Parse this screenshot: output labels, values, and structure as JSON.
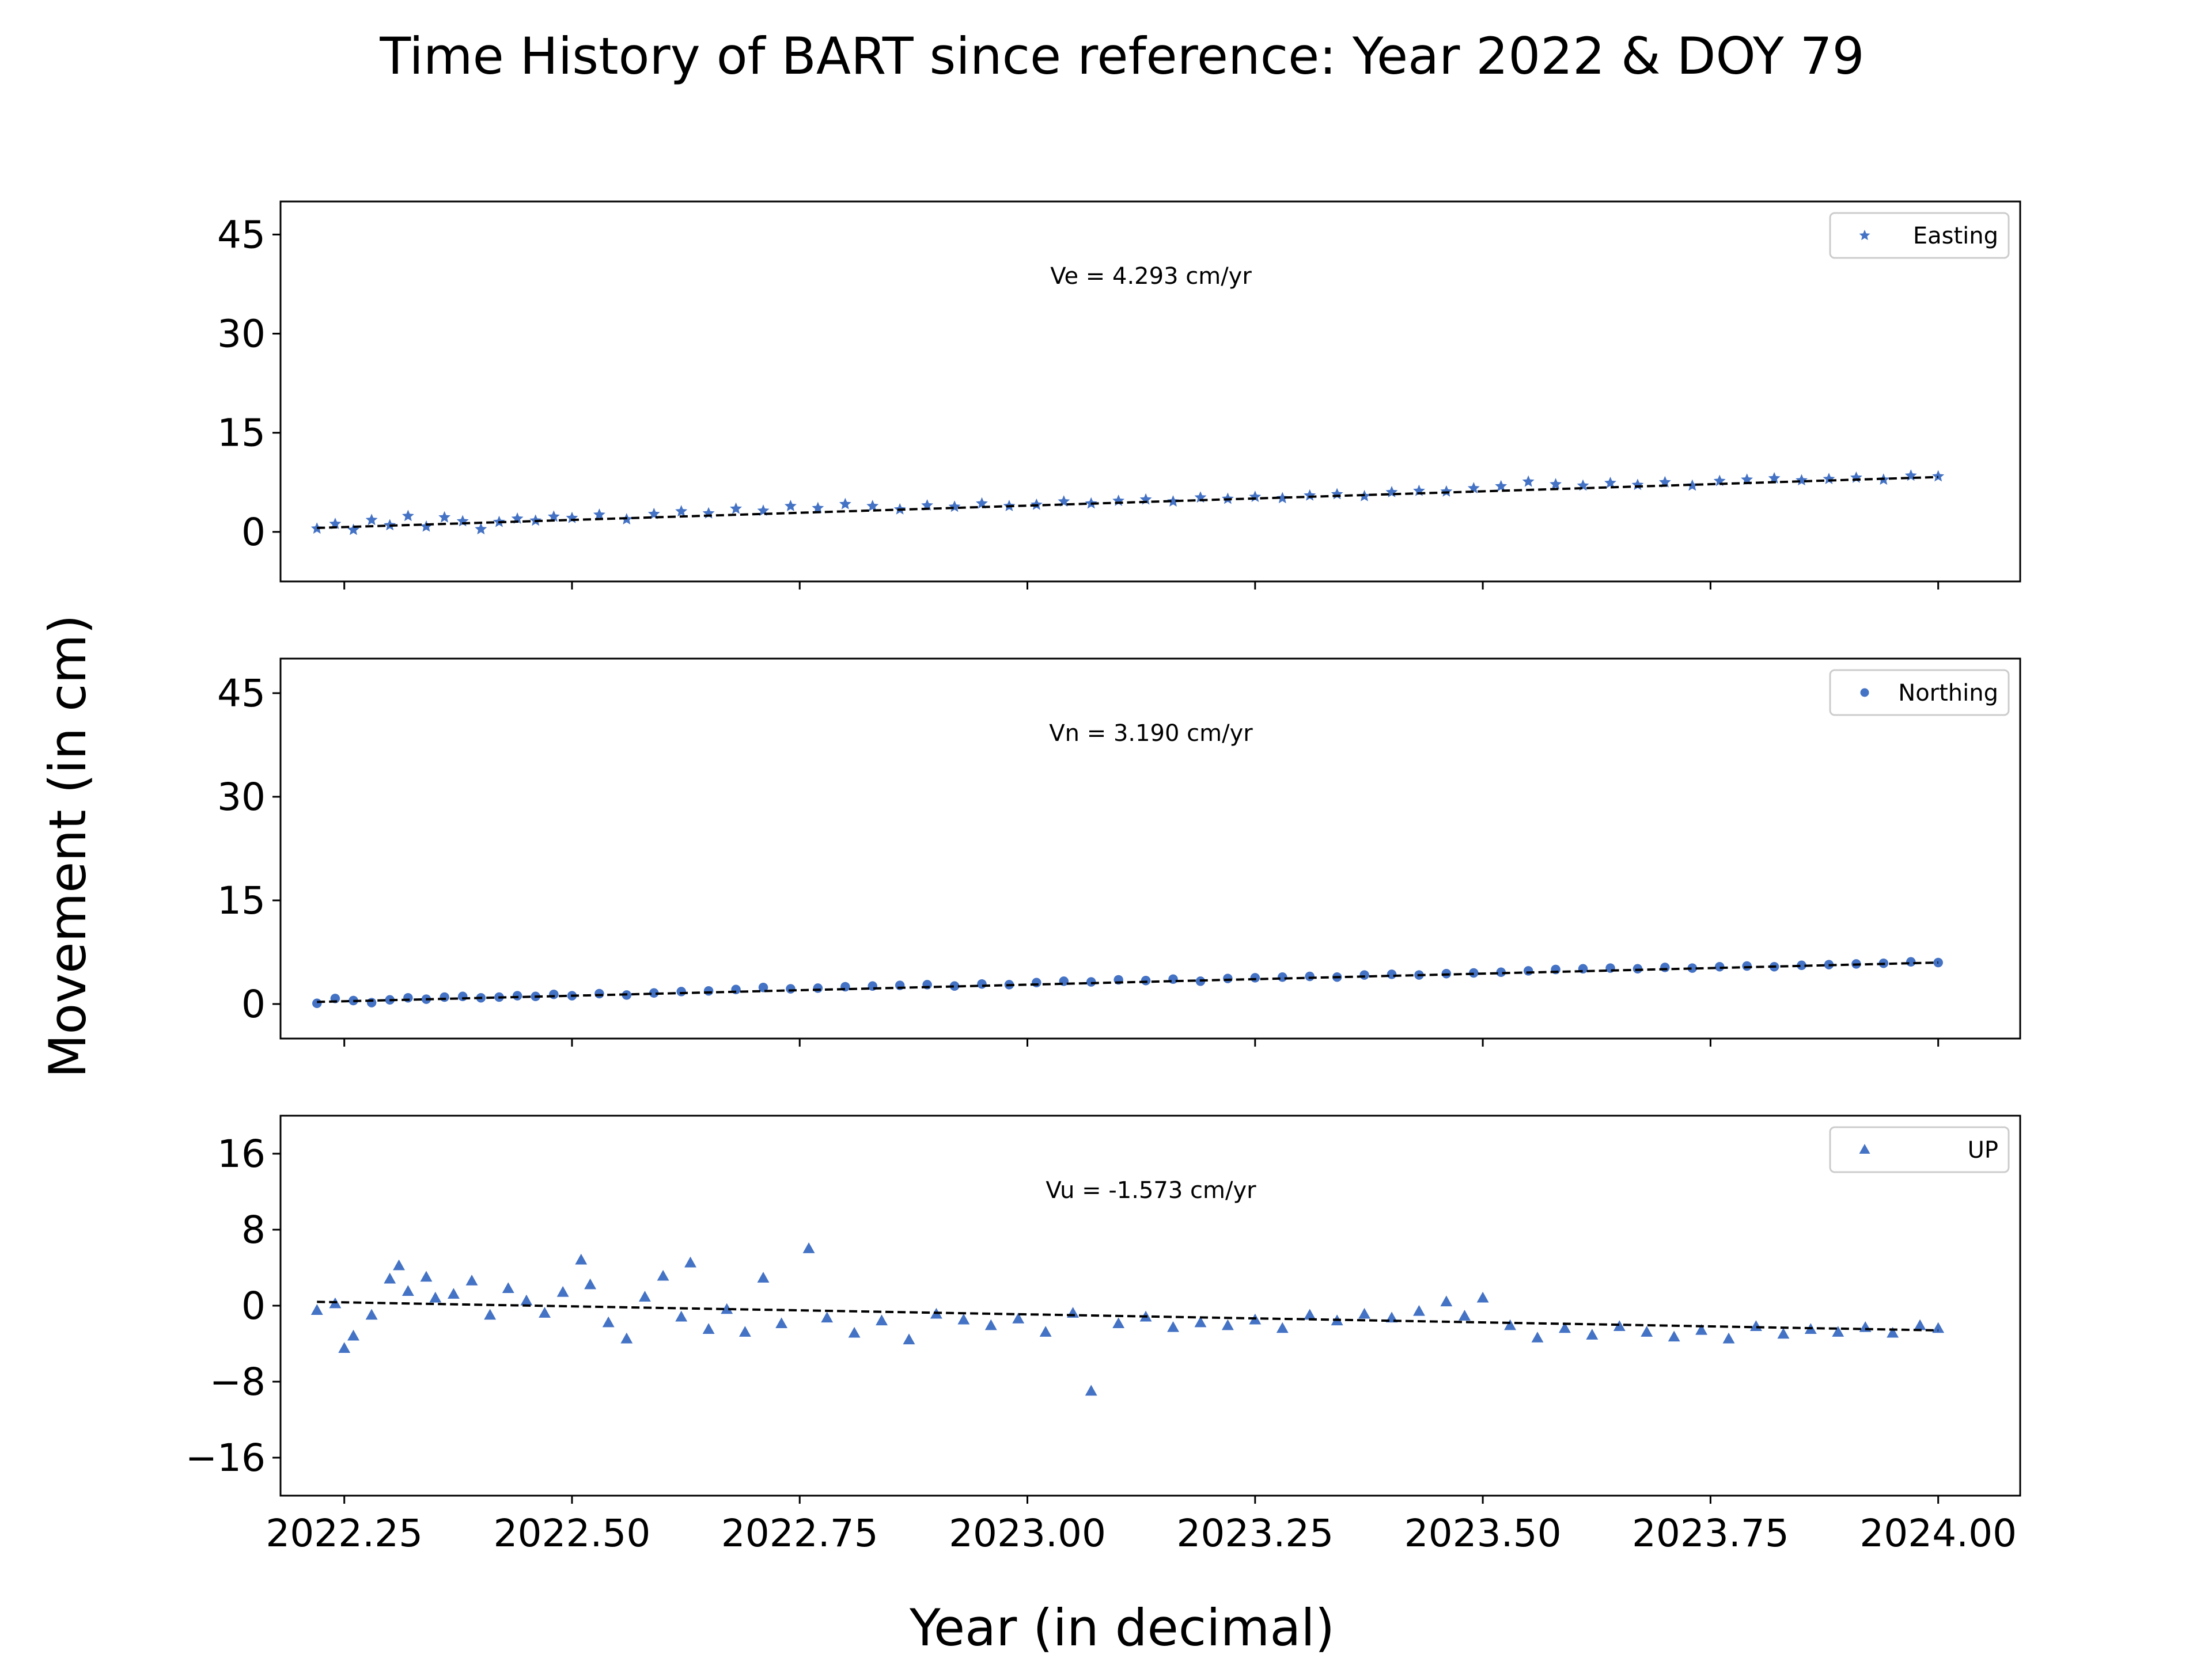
{
  "figure": {
    "title": "Time History of BART since reference: Year 2022 & DOY 79",
    "xlabel": "Year (in decimal)",
    "ylabel": "Movement (in cm)"
  },
  "colors": {
    "points": "#4472c4",
    "trend": "#000000",
    "axes": "#000000",
    "background": "#ffffff"
  },
  "chart_data": [
    {
      "type": "scatter",
      "component": "east",
      "legend": "Easting",
      "marker": "star",
      "annotation": "Ve =  4.293 cm/yr",
      "xlim": [
        2022.18,
        2024.09
      ],
      "ylim": [
        -7.5,
        50
      ],
      "yticks": [
        0,
        15,
        30,
        45
      ],
      "ytick_labels": [
        "0",
        "15",
        "30",
        "45"
      ],
      "xtick_labels_visible": false,
      "grid": false,
      "legend_position": "top-right",
      "trend": {
        "x": [
          2022.22,
          2024.0
        ],
        "y": [
          0.6,
          8.3
        ]
      },
      "points": {
        "x": [
          2022.22,
          2022.24,
          2022.26,
          2022.28,
          2022.3,
          2022.32,
          2022.34,
          2022.36,
          2022.38,
          2022.4,
          2022.42,
          2022.44,
          2022.46,
          2022.48,
          2022.5,
          2022.53,
          2022.56,
          2022.59,
          2022.62,
          2022.65,
          2022.68,
          2022.71,
          2022.74,
          2022.77,
          2022.8,
          2022.83,
          2022.86,
          2022.89,
          2022.92,
          2022.95,
          2022.98,
          2023.01,
          2023.04,
          2023.07,
          2023.1,
          2023.13,
          2023.16,
          2023.19,
          2023.22,
          2023.25,
          2023.28,
          2023.31,
          2023.34,
          2023.37,
          2023.4,
          2023.43,
          2023.46,
          2023.49,
          2023.52,
          2023.55,
          2023.58,
          2023.61,
          2023.64,
          2023.67,
          2023.7,
          2023.73,
          2023.76,
          2023.79,
          2023.82,
          2023.85,
          2023.88,
          2023.91,
          2023.94,
          2023.97,
          2024.0
        ],
        "y": [
          0.5,
          1.2,
          0.3,
          1.8,
          1.0,
          2.4,
          0.8,
          2.2,
          1.6,
          0.4,
          1.5,
          2.0,
          1.7,
          2.3,
          2.1,
          2.6,
          1.9,
          2.7,
          3.1,
          2.8,
          3.5,
          3.2,
          3.9,
          3.6,
          4.2,
          3.9,
          3.4,
          4.0,
          3.8,
          4.3,
          3.9,
          4.1,
          4.6,
          4.3,
          4.7,
          4.9,
          4.6,
          5.2,
          5.0,
          5.3,
          5.1,
          5.5,
          5.7,
          5.4,
          6.0,
          6.2,
          6.1,
          6.6,
          6.9,
          7.6,
          7.2,
          7.0,
          7.4,
          7.1,
          7.5,
          7.0,
          7.7,
          7.9,
          8.1,
          7.8,
          8.0,
          8.2,
          7.9,
          8.5,
          8.4
        ]
      }
    },
    {
      "type": "scatter",
      "component": "north",
      "legend": "Northing",
      "marker": "circle",
      "annotation": "Vn =  3.190 cm/yr",
      "xlim": [
        2022.18,
        2024.09
      ],
      "ylim": [
        -5,
        50
      ],
      "yticks": [
        0,
        15,
        30,
        45
      ],
      "ytick_labels": [
        "0",
        "15",
        "30",
        "45"
      ],
      "xtick_labels_visible": false,
      "grid": false,
      "legend_position": "top-right",
      "trend": {
        "x": [
          2022.22,
          2024.0
        ],
        "y": [
          0.3,
          6.0
        ]
      },
      "points": {
        "x": [
          2022.22,
          2022.24,
          2022.26,
          2022.28,
          2022.3,
          2022.32,
          2022.34,
          2022.36,
          2022.38,
          2022.4,
          2022.42,
          2022.44,
          2022.46,
          2022.48,
          2022.5,
          2022.53,
          2022.56,
          2022.59,
          2022.62,
          2022.65,
          2022.68,
          2022.71,
          2022.74,
          2022.77,
          2022.8,
          2022.83,
          2022.86,
          2022.89,
          2022.92,
          2022.95,
          2022.98,
          2023.01,
          2023.04,
          2023.07,
          2023.1,
          2023.13,
          2023.16,
          2023.19,
          2023.22,
          2023.25,
          2023.28,
          2023.31,
          2023.34,
          2023.37,
          2023.4,
          2023.43,
          2023.46,
          2023.49,
          2023.52,
          2023.55,
          2023.58,
          2023.61,
          2023.64,
          2023.67,
          2023.7,
          2023.73,
          2023.76,
          2023.79,
          2023.82,
          2023.85,
          2023.88,
          2023.91,
          2023.94,
          2023.97,
          2024.0
        ],
        "y": [
          0.1,
          0.8,
          0.5,
          0.2,
          0.6,
          0.9,
          0.7,
          1.0,
          1.1,
          0.9,
          1.0,
          1.2,
          1.1,
          1.4,
          1.2,
          1.5,
          1.3,
          1.6,
          1.8,
          1.9,
          2.1,
          2.4,
          2.2,
          2.3,
          2.5,
          2.6,
          2.7,
          2.8,
          2.6,
          2.9,
          2.8,
          3.1,
          3.3,
          3.2,
          3.5,
          3.4,
          3.6,
          3.3,
          3.7,
          3.8,
          3.9,
          4.0,
          3.9,
          4.2,
          4.3,
          4.2,
          4.4,
          4.5,
          4.6,
          4.8,
          5.0,
          5.1,
          5.2,
          5.1,
          5.3,
          5.2,
          5.4,
          5.5,
          5.4,
          5.6,
          5.7,
          5.8,
          5.9,
          6.1,
          6.0
        ]
      }
    },
    {
      "type": "scatter",
      "component": "up",
      "legend": "UP",
      "marker": "triangle",
      "annotation": "Vu = -1.573 cm/yr",
      "xlim": [
        2022.18,
        2024.09
      ],
      "ylim": [
        -20,
        20
      ],
      "yticks": [
        -16,
        -8,
        0,
        8,
        16
      ],
      "ytick_labels": [
        "−16",
        "−8",
        "0",
        "8",
        "16"
      ],
      "xticks": [
        2022.25,
        2022.5,
        2022.75,
        2023.0,
        2023.25,
        2023.5,
        2023.75,
        2024.0
      ],
      "xtick_labels": [
        "2022.25",
        "2022.50",
        "2022.75",
        "2023.00",
        "2023.25",
        "2023.50",
        "2023.75",
        "2024.00"
      ],
      "grid": false,
      "legend_position": "top-right",
      "trend": {
        "x": [
          2022.22,
          2024.0
        ],
        "y": [
          0.4,
          -2.6
        ]
      },
      "points": {
        "x": [
          2022.22,
          2022.24,
          2022.25,
          2022.26,
          2022.28,
          2022.3,
          2022.31,
          2022.32,
          2022.34,
          2022.35,
          2022.37,
          2022.39,
          2022.41,
          2022.43,
          2022.45,
          2022.47,
          2022.49,
          2022.51,
          2022.52,
          2022.54,
          2022.56,
          2022.58,
          2022.6,
          2022.62,
          2022.63,
          2022.65,
          2022.67,
          2022.69,
          2022.71,
          2022.73,
          2022.76,
          2022.78,
          2022.81,
          2022.84,
          2022.87,
          2022.9,
          2022.93,
          2022.96,
          2022.99,
          2023.02,
          2023.05,
          2023.07,
          2023.1,
          2023.13,
          2023.16,
          2023.19,
          2023.22,
          2023.25,
          2023.28,
          2023.31,
          2023.34,
          2023.37,
          2023.4,
          2023.43,
          2023.46,
          2023.48,
          2023.5,
          2023.53,
          2023.56,
          2023.59,
          2023.62,
          2023.65,
          2023.68,
          2023.71,
          2023.74,
          2023.77,
          2023.8,
          2023.83,
          2023.86,
          2023.89,
          2023.92,
          2023.95,
          2023.98,
          2024.0
        ],
        "y": [
          -0.5,
          0.2,
          -4.5,
          -3.2,
          -1.0,
          2.8,
          4.2,
          1.5,
          3.0,
          0.8,
          1.2,
          2.6,
          -1.0,
          1.8,
          0.5,
          -0.8,
          1.4,
          4.8,
          2.2,
          -1.8,
          -3.5,
          0.9,
          3.1,
          -1.2,
          4.5,
          -2.5,
          -0.4,
          -2.8,
          2.9,
          -1.9,
          6.0,
          -1.3,
          -2.9,
          -1.6,
          -3.6,
          -0.9,
          -1.5,
          -2.1,
          -1.4,
          -2.8,
          -0.8,
          -9.0,
          -1.9,
          -1.2,
          -2.3,
          -1.8,
          -2.1,
          -1.5,
          -2.4,
          -1.0,
          -1.6,
          -0.9,
          -1.3,
          -0.6,
          0.4,
          -1.1,
          0.8,
          -2.1,
          -3.4,
          -2.4,
          -3.1,
          -2.2,
          -2.8,
          -3.3,
          -2.6,
          -3.5,
          -2.2,
          -3.0,
          -2.5,
          -2.8,
          -2.3,
          -2.9,
          -2.1,
          -2.4
        ]
      }
    }
  ]
}
